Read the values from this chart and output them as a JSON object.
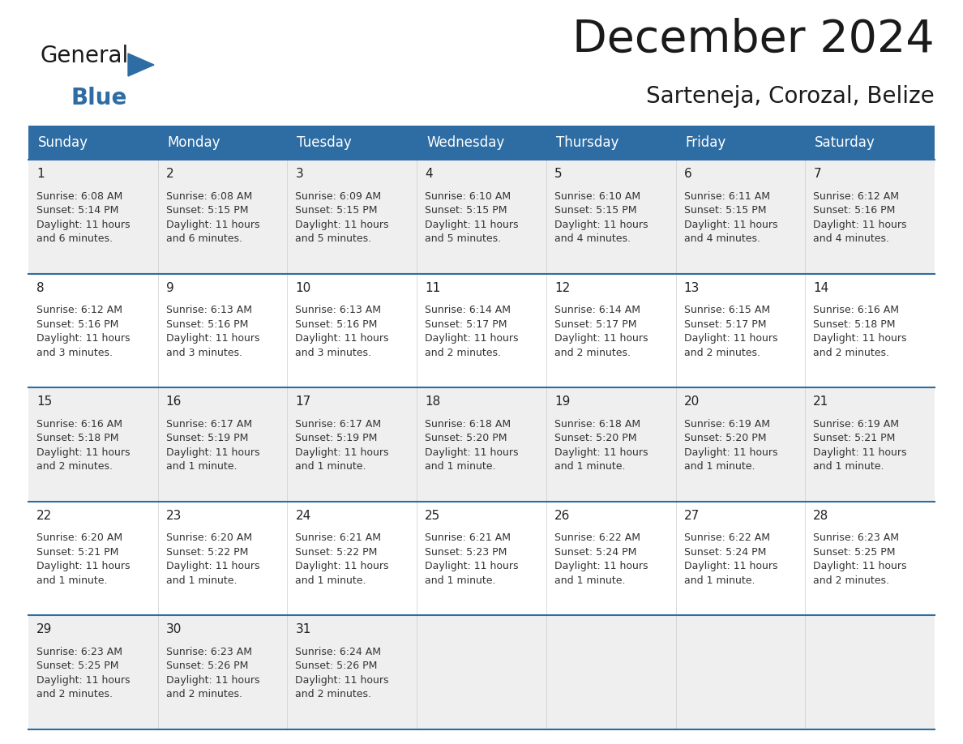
{
  "title": "December 2024",
  "subtitle": "Sarteneja, Corozal, Belize",
  "header_bg_color": "#2E6DA4",
  "header_text_color": "#FFFFFF",
  "day_names": [
    "Sunday",
    "Monday",
    "Tuesday",
    "Wednesday",
    "Thursday",
    "Friday",
    "Saturday"
  ],
  "bg_color": "#FFFFFF",
  "cell_bg_even": "#EFEFEF",
  "cell_bg_odd": "#FFFFFF",
  "border_color": "#2E6DA4",
  "day_num_color": "#222222",
  "text_color": "#333333",
  "days": [
    {
      "day": 1,
      "col": 0,
      "row": 0,
      "sunrise": "6:08 AM",
      "sunset": "5:14 PM",
      "daylight": "11 hours and 6 minutes."
    },
    {
      "day": 2,
      "col": 1,
      "row": 0,
      "sunrise": "6:08 AM",
      "sunset": "5:15 PM",
      "daylight": "11 hours and 6 minutes."
    },
    {
      "day": 3,
      "col": 2,
      "row": 0,
      "sunrise": "6:09 AM",
      "sunset": "5:15 PM",
      "daylight": "11 hours and 5 minutes."
    },
    {
      "day": 4,
      "col": 3,
      "row": 0,
      "sunrise": "6:10 AM",
      "sunset": "5:15 PM",
      "daylight": "11 hours and 5 minutes."
    },
    {
      "day": 5,
      "col": 4,
      "row": 0,
      "sunrise": "6:10 AM",
      "sunset": "5:15 PM",
      "daylight": "11 hours and 4 minutes."
    },
    {
      "day": 6,
      "col": 5,
      "row": 0,
      "sunrise": "6:11 AM",
      "sunset": "5:15 PM",
      "daylight": "11 hours and 4 minutes."
    },
    {
      "day": 7,
      "col": 6,
      "row": 0,
      "sunrise": "6:12 AM",
      "sunset": "5:16 PM",
      "daylight": "11 hours and 4 minutes."
    },
    {
      "day": 8,
      "col": 0,
      "row": 1,
      "sunrise": "6:12 AM",
      "sunset": "5:16 PM",
      "daylight": "11 hours and 3 minutes."
    },
    {
      "day": 9,
      "col": 1,
      "row": 1,
      "sunrise": "6:13 AM",
      "sunset": "5:16 PM",
      "daylight": "11 hours and 3 minutes."
    },
    {
      "day": 10,
      "col": 2,
      "row": 1,
      "sunrise": "6:13 AM",
      "sunset": "5:16 PM",
      "daylight": "11 hours and 3 minutes."
    },
    {
      "day": 11,
      "col": 3,
      "row": 1,
      "sunrise": "6:14 AM",
      "sunset": "5:17 PM",
      "daylight": "11 hours and 2 minutes."
    },
    {
      "day": 12,
      "col": 4,
      "row": 1,
      "sunrise": "6:14 AM",
      "sunset": "5:17 PM",
      "daylight": "11 hours and 2 minutes."
    },
    {
      "day": 13,
      "col": 5,
      "row": 1,
      "sunrise": "6:15 AM",
      "sunset": "5:17 PM",
      "daylight": "11 hours and 2 minutes."
    },
    {
      "day": 14,
      "col": 6,
      "row": 1,
      "sunrise": "6:16 AM",
      "sunset": "5:18 PM",
      "daylight": "11 hours and 2 minutes."
    },
    {
      "day": 15,
      "col": 0,
      "row": 2,
      "sunrise": "6:16 AM",
      "sunset": "5:18 PM",
      "daylight": "11 hours and 2 minutes."
    },
    {
      "day": 16,
      "col": 1,
      "row": 2,
      "sunrise": "6:17 AM",
      "sunset": "5:19 PM",
      "daylight": "11 hours and 1 minute."
    },
    {
      "day": 17,
      "col": 2,
      "row": 2,
      "sunrise": "6:17 AM",
      "sunset": "5:19 PM",
      "daylight": "11 hours and 1 minute."
    },
    {
      "day": 18,
      "col": 3,
      "row": 2,
      "sunrise": "6:18 AM",
      "sunset": "5:20 PM",
      "daylight": "11 hours and 1 minute."
    },
    {
      "day": 19,
      "col": 4,
      "row": 2,
      "sunrise": "6:18 AM",
      "sunset": "5:20 PM",
      "daylight": "11 hours and 1 minute."
    },
    {
      "day": 20,
      "col": 5,
      "row": 2,
      "sunrise": "6:19 AM",
      "sunset": "5:20 PM",
      "daylight": "11 hours and 1 minute."
    },
    {
      "day": 21,
      "col": 6,
      "row": 2,
      "sunrise": "6:19 AM",
      "sunset": "5:21 PM",
      "daylight": "11 hours and 1 minute."
    },
    {
      "day": 22,
      "col": 0,
      "row": 3,
      "sunrise": "6:20 AM",
      "sunset": "5:21 PM",
      "daylight": "11 hours and 1 minute."
    },
    {
      "day": 23,
      "col": 1,
      "row": 3,
      "sunrise": "6:20 AM",
      "sunset": "5:22 PM",
      "daylight": "11 hours and 1 minute."
    },
    {
      "day": 24,
      "col": 2,
      "row": 3,
      "sunrise": "6:21 AM",
      "sunset": "5:22 PM",
      "daylight": "11 hours and 1 minute."
    },
    {
      "day": 25,
      "col": 3,
      "row": 3,
      "sunrise": "6:21 AM",
      "sunset": "5:23 PM",
      "daylight": "11 hours and 1 minute."
    },
    {
      "day": 26,
      "col": 4,
      "row": 3,
      "sunrise": "6:22 AM",
      "sunset": "5:24 PM",
      "daylight": "11 hours and 1 minute."
    },
    {
      "day": 27,
      "col": 5,
      "row": 3,
      "sunrise": "6:22 AM",
      "sunset": "5:24 PM",
      "daylight": "11 hours and 1 minute."
    },
    {
      "day": 28,
      "col": 6,
      "row": 3,
      "sunrise": "6:23 AM",
      "sunset": "5:25 PM",
      "daylight": "11 hours and 2 minutes."
    },
    {
      "day": 29,
      "col": 0,
      "row": 4,
      "sunrise": "6:23 AM",
      "sunset": "5:25 PM",
      "daylight": "11 hours and 2 minutes."
    },
    {
      "day": 30,
      "col": 1,
      "row": 4,
      "sunrise": "6:23 AM",
      "sunset": "5:26 PM",
      "daylight": "11 hours and 2 minutes."
    },
    {
      "day": 31,
      "col": 2,
      "row": 4,
      "sunrise": "6:24 AM",
      "sunset": "5:26 PM",
      "daylight": "11 hours and 2 minutes."
    }
  ],
  "num_rows": 5,
  "logo_general_color": "#1a1a1a",
  "logo_blue_color": "#2E6DA4",
  "logo_triangle_color": "#2E6DA4",
  "title_color": "#1a1a1a",
  "subtitle_color": "#1a1a1a",
  "title_fontsize": 40,
  "subtitle_fontsize": 20,
  "header_fontsize": 12,
  "daynum_fontsize": 11,
  "cell_fontsize": 9
}
